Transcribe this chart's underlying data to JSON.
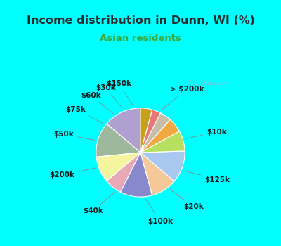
{
  "title": "Income distribution in Dunn, WI (%)",
  "subtitle": "Asian residents",
  "title_color": "#2d2d2d",
  "subtitle_color": "#3aaa3a",
  "bg_top_color": "#00ffff",
  "chart_bg_color": "#e0f0e8",
  "watermark": "City-Data.com",
  "labels": [
    "> $200k",
    "$10k",
    "$125k",
    "$20k",
    "$100k",
    "$40k",
    "$200k",
    "$50k",
    "$75k",
    "$60k",
    "$30k",
    "$150k"
  ],
  "values": [
    13,
    12,
    9,
    6,
    11,
    9,
    11,
    7,
    5,
    4,
    3,
    4
  ],
  "colors": [
    "#b0a0d0",
    "#9eb89e",
    "#f5f5a0",
    "#e8a8b8",
    "#8888cc",
    "#f5c89a",
    "#a8c8f0",
    "#b8e060",
    "#f0a840",
    "#c8bea8",
    "#e87878",
    "#c8a020"
  ],
  "label_fontsize": 7.5,
  "startangle": 90
}
